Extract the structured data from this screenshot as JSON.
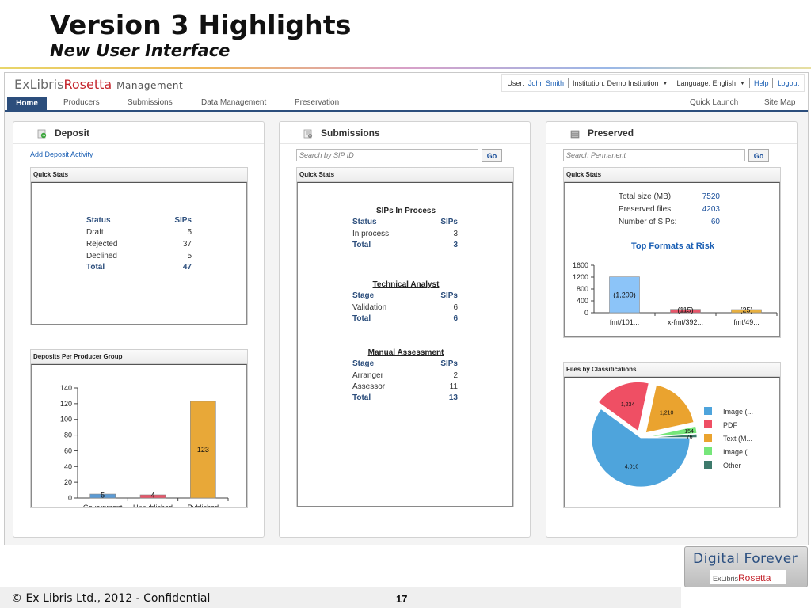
{
  "slide": {
    "title": "Version 3 Highlights",
    "subtitle": "New User Interface",
    "footer_copyright": "© Ex Libris Ltd., 2012  - Confidential",
    "page_number": "17",
    "badge_text": "Digital Forever",
    "badge_logo_prefix": "ExLibris",
    "badge_logo_accent": "Rosetta"
  },
  "app": {
    "logo_prefix": "ExLibris",
    "logo_accent": "Rosetta",
    "logo_suffix": "Management",
    "userbar": {
      "user_label": "User:",
      "user_name": "John Smith",
      "institution": "Institution: Demo Institution",
      "language": "Language: English",
      "help": "Help",
      "logout": "Logout"
    },
    "nav": {
      "home": "Home",
      "producers": "Producers",
      "submissions": "Submissions",
      "data_management": "Data Management",
      "preservation": "Preservation",
      "quick_launch": "Quick Launch",
      "site_map": "Site Map"
    }
  },
  "deposit": {
    "title": "Deposit",
    "add_link": "Add Deposit Activity",
    "quick_stats_title": "Quick Stats",
    "table": {
      "col_status": "Status",
      "col_sips": "SIPs",
      "rows": [
        {
          "status": "Draft",
          "sips": "5"
        },
        {
          "status": "Rejected",
          "sips": "37"
        },
        {
          "status": "Declined",
          "sips": "5"
        }
      ],
      "total_label": "Total",
      "total_value": "47"
    },
    "group_box_title": "Deposits Per Producer Group"
  },
  "submissions": {
    "title": "Submissions",
    "search_placeholder": "Search by SIP ID",
    "go_label": "Go",
    "quick_stats_title": "Quick Stats",
    "sections": [
      {
        "title": "SIPs In Process",
        "col_a": "Status",
        "col_b": "SIPs",
        "rows": [
          {
            "a": "In process",
            "b": "3"
          }
        ],
        "total_label": "Total",
        "total_value": "3"
      },
      {
        "title": "Technical Analyst",
        "col_a": "Stage",
        "col_b": "SIPs",
        "rows": [
          {
            "a": "Validation",
            "b": "6"
          }
        ],
        "total_label": "Total",
        "total_value": "6"
      },
      {
        "title": "Manual Assessment",
        "col_a": "Stage",
        "col_b": "SIPs",
        "rows": [
          {
            "a": "Arranger",
            "b": "2"
          },
          {
            "a": "Assessor",
            "b": "11"
          }
        ],
        "total_label": "Total",
        "total_value": "13"
      }
    ]
  },
  "preserved": {
    "title": "Preserved",
    "search_placeholder": "Search Permanent",
    "go_label": "Go",
    "quick_stats_title": "Quick Stats",
    "stats": [
      {
        "label": "Total size (MB):",
        "value": "7520"
      },
      {
        "label": "Preserved files:",
        "value": "4203"
      },
      {
        "label": "Number of SIPs:",
        "value": "60"
      }
    ],
    "formats_title": "Top Formats at Risk",
    "classifications_title": "Files by Classifications"
  },
  "chart_data": [
    {
      "type": "bar",
      "title": "Deposits Per Producer Group",
      "categories": [
        "Government",
        "Unpublished",
        "Published"
      ],
      "values": [
        5,
        4,
        123
      ],
      "data_labels": [
        "5",
        "4",
        "123"
      ],
      "colors": [
        "#5b9bd5",
        "#e8566a",
        "#e8a838"
      ],
      "ylim": [
        0,
        140
      ],
      "yticks": [
        0,
        20,
        40,
        60,
        80,
        100,
        120,
        140
      ]
    },
    {
      "type": "bar",
      "title": "Top Formats at Risk",
      "categories": [
        "fmt/101...",
        "x-fmt/392...",
        "fmt/49..."
      ],
      "values": [
        1209,
        115,
        25
      ],
      "data_labels": [
        "(1,209)",
        "(115)",
        "(25)"
      ],
      "colors": [
        "#8cc4f8",
        "#e8566a",
        "#e8b040"
      ],
      "ylim": [
        0,
        1600
      ],
      "yticks": [
        0,
        400,
        800,
        1200,
        1600
      ]
    },
    {
      "type": "pie",
      "title": "Files by Classifications",
      "labels": [
        "Image (...",
        "PDF",
        "Text (M...",
        "Image (...",
        "Other"
      ],
      "values": [
        4010,
        1234,
        1210,
        154,
        76
      ],
      "data_labels": [
        "4,010",
        "1,234",
        "1,210",
        "154",
        "76"
      ],
      "colors": [
        "#4ea4dc",
        "#ef4f64",
        "#eaa32f",
        "#76e67a",
        "#3e7a6c"
      ]
    }
  ]
}
